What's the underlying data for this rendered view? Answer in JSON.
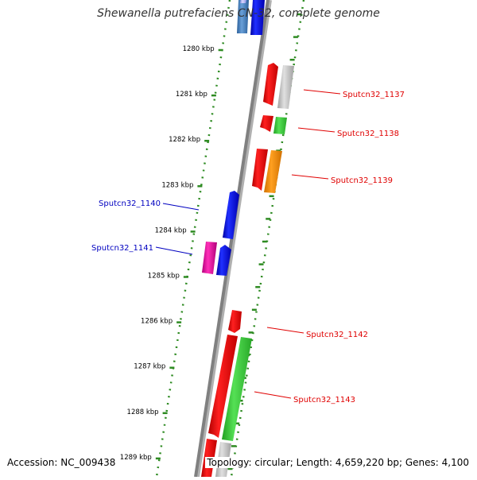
{
  "title": "Shewanella putrefaciens CN-32, complete genome",
  "footer": {
    "accession": "Accession: NC_009438",
    "summary": "Topology: circular; Length: 4,659,220 bp; Genes: 4,100"
  },
  "ticks": [
    {
      "label": "1280 kbp",
      "kbp": 1280
    },
    {
      "label": "1281 kbp",
      "kbp": 1281
    },
    {
      "label": "1282 kbp",
      "kbp": 1282
    },
    {
      "label": "1283 kbp",
      "kbp": 1283
    },
    {
      "label": "1284 kbp",
      "kbp": 1284
    },
    {
      "label": "1285 kbp",
      "kbp": 1285
    },
    {
      "label": "1286 kbp",
      "kbp": 1286
    },
    {
      "label": "1287 kbp",
      "kbp": 1287
    },
    {
      "label": "1288 kbp",
      "kbp": 1288
    },
    {
      "label": "1289 kbp",
      "kbp": 1289
    }
  ],
  "gene_labels": [
    {
      "text": "Sputcn32_1137",
      "color": "#e00000",
      "side": "right"
    },
    {
      "text": "Sputcn32_1138",
      "color": "#e00000",
      "side": "right"
    },
    {
      "text": "Sputcn32_1139",
      "color": "#e00000",
      "side": "right"
    },
    {
      "text": "Sputcn32_1140",
      "color": "#0000c0",
      "side": "left"
    },
    {
      "text": "Sputcn32_1141",
      "color": "#0000c0",
      "side": "left"
    },
    {
      "text": "Sputcn32_1142",
      "color": "#e00000",
      "side": "right"
    },
    {
      "text": "Sputcn32_1143",
      "color": "#e00000",
      "side": "right"
    }
  ],
  "colors": {
    "forward_strand": "#e00000",
    "reverse_strand": "#0000e0",
    "backbone": "#808080",
    "tick_marks": "#2e8b22",
    "cog_green": "#33cc33",
    "cog_orange": "#ff8c00",
    "cog_gray": "#b4b4b4",
    "cog_magenta": "#e0109a",
    "cog_blue_light": "#3f7fbf"
  }
}
